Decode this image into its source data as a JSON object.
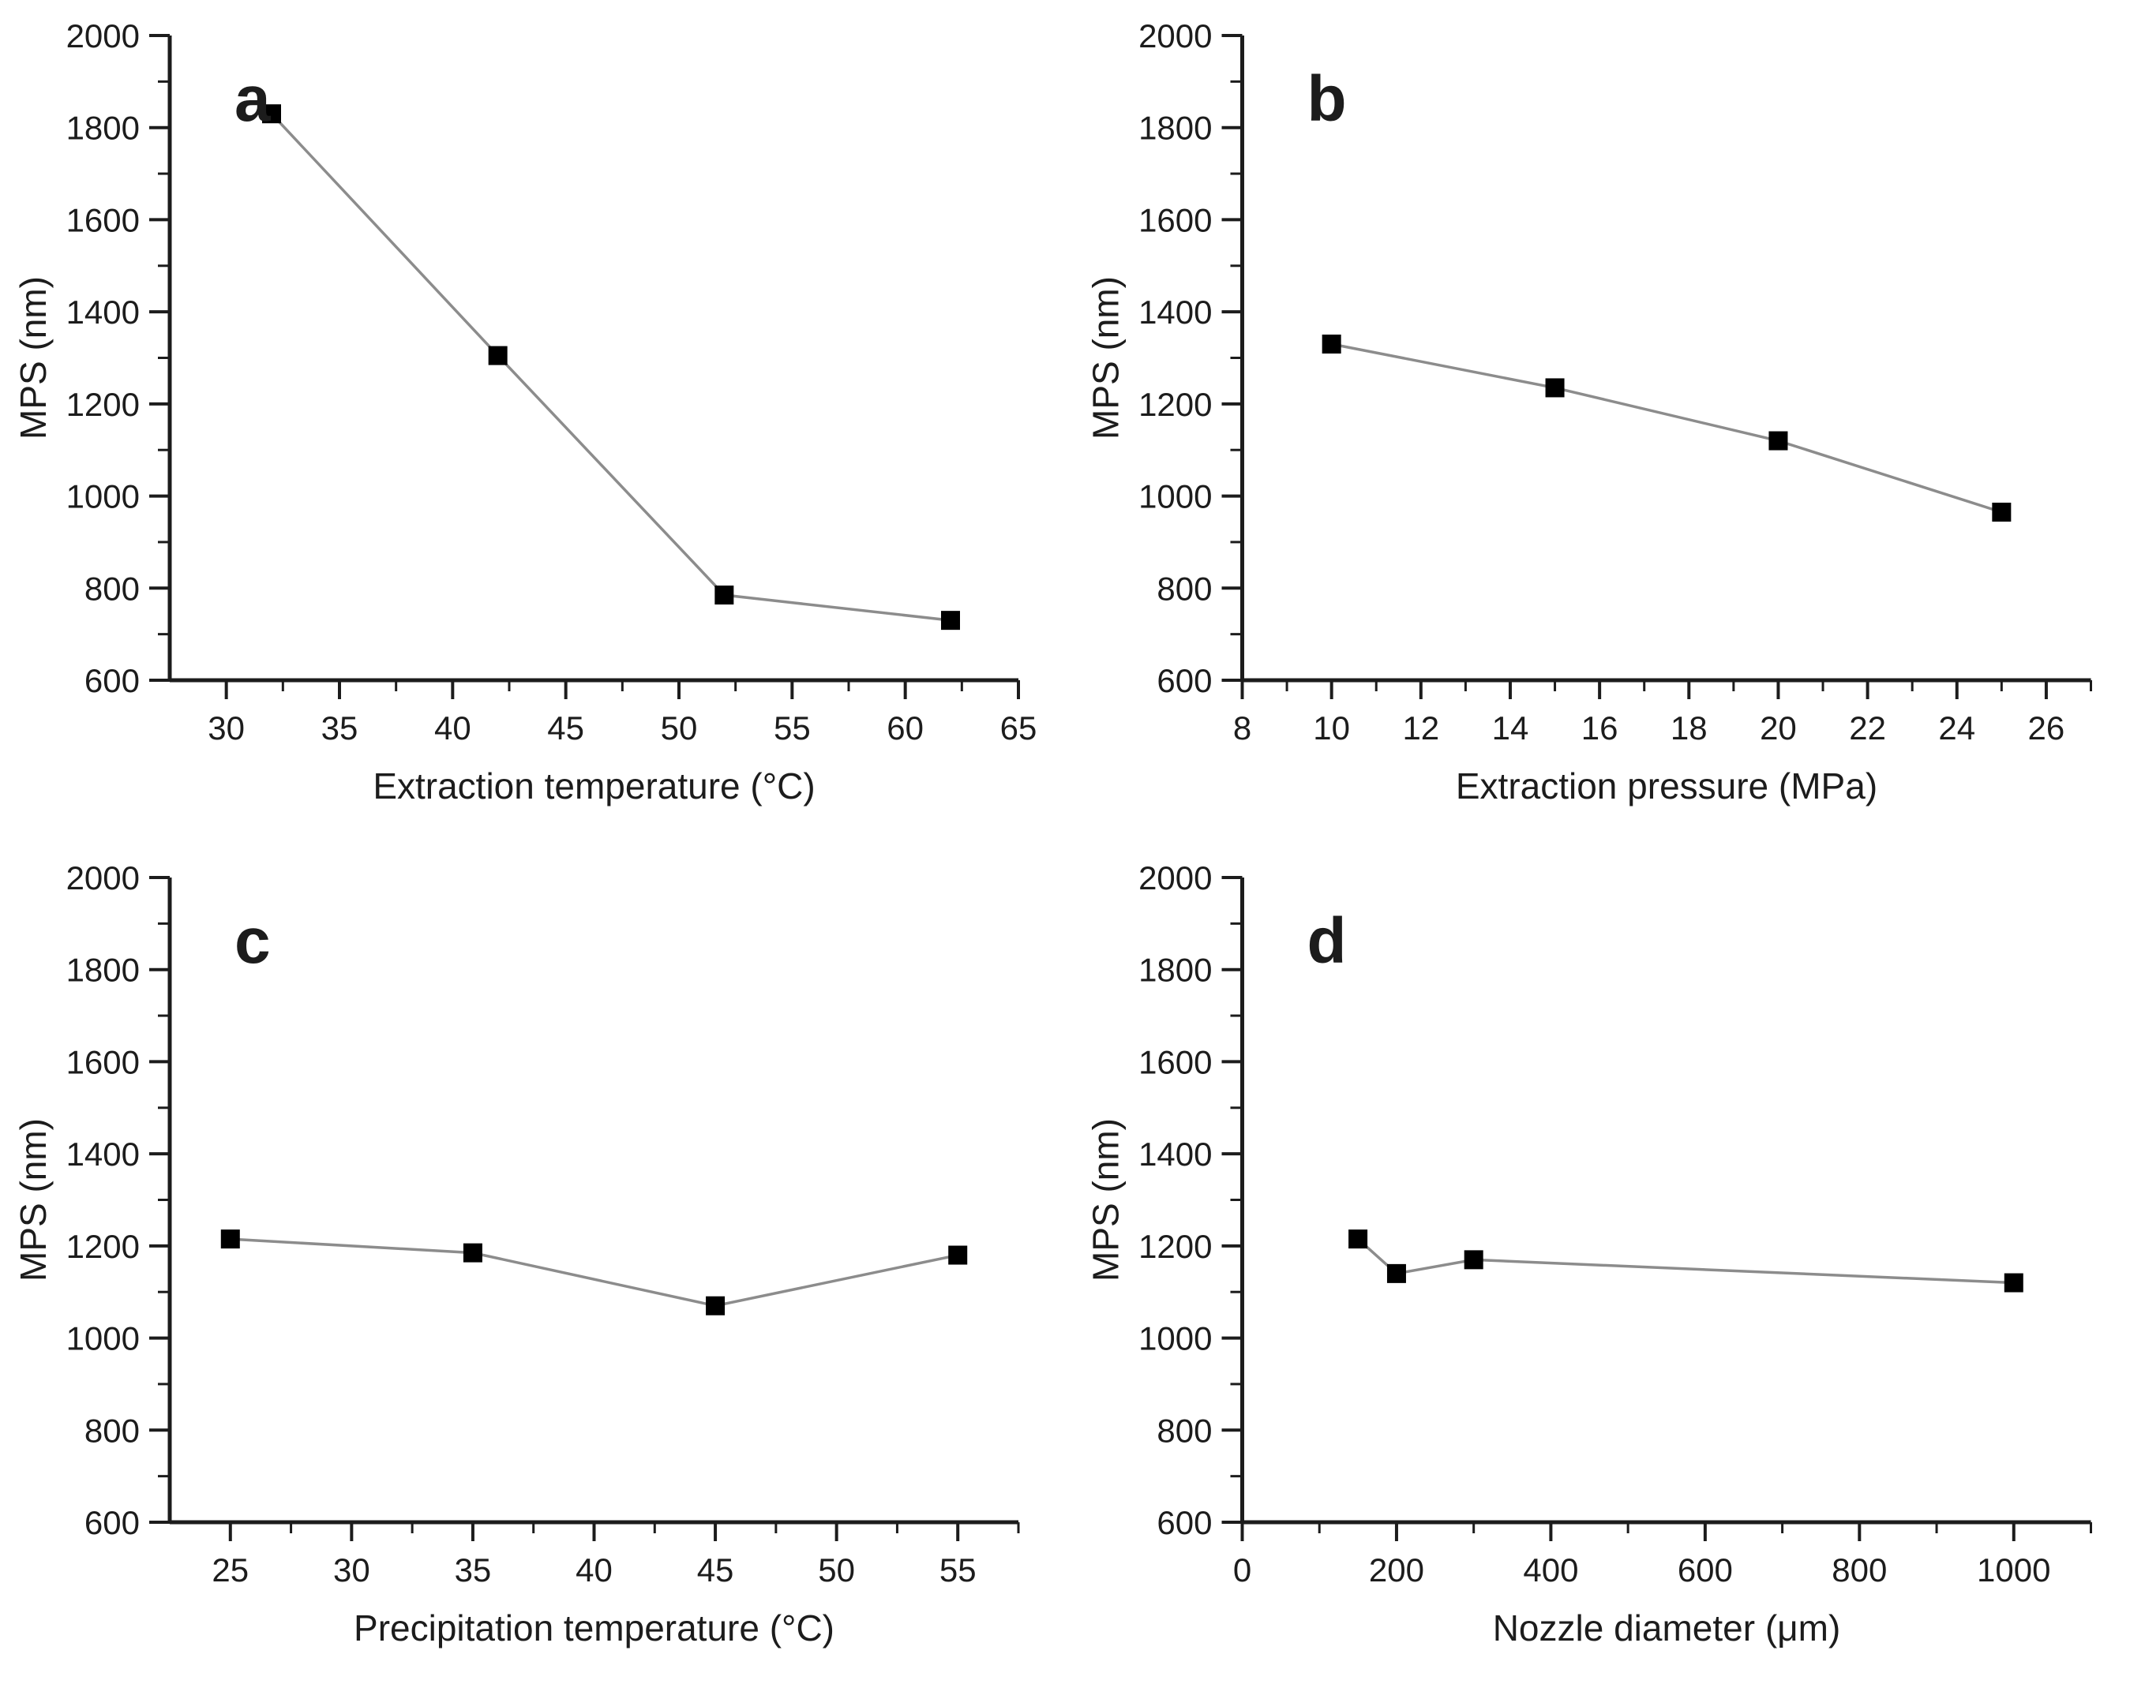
{
  "figure": {
    "background": "#ffffff",
    "axis_color": "#1c1c1c",
    "line_color": "#8c8c8c",
    "marker_color": "#000000",
    "text_color": "#1c1c1c",
    "marker_size": 24
  },
  "chart_data": [
    {
      "type": "line",
      "panel_label": "a",
      "xlabel": "Extraction temperature (°C)",
      "ylabel": "MPS (nm)",
      "x": [
        32,
        42,
        52,
        62
      ],
      "y": [
        1830,
        1305,
        785,
        730
      ],
      "xlim": [
        27.5,
        65
      ],
      "ylim": [
        600,
        2000
      ],
      "xticks": [
        30,
        35,
        40,
        45,
        50,
        55,
        60,
        65
      ],
      "x_minor_step": 2.5,
      "yticks": [
        600,
        800,
        1000,
        1200,
        1400,
        1600,
        1800,
        2000
      ],
      "y_minor_step": 100,
      "grid": false,
      "legend": "none"
    },
    {
      "type": "line",
      "panel_label": "b",
      "xlabel": "Extraction pressure (MPa)",
      "ylabel": "MPS (nm)",
      "x": [
        10,
        15,
        20,
        25
      ],
      "y": [
        1330,
        1235,
        1120,
        965
      ],
      "xlim": [
        8,
        27
      ],
      "ylim": [
        600,
        2000
      ],
      "xticks": [
        8,
        10,
        12,
        14,
        16,
        18,
        20,
        22,
        24,
        26
      ],
      "x_minor_step": 1,
      "yticks": [
        600,
        800,
        1000,
        1200,
        1400,
        1600,
        1800,
        2000
      ],
      "y_minor_step": 100,
      "grid": false,
      "legend": "none"
    },
    {
      "type": "line",
      "panel_label": "c",
      "xlabel": "Precipitation temperature (°C)",
      "ylabel": "MPS (nm)",
      "x": [
        25,
        35,
        45,
        55
      ],
      "y": [
        1215,
        1185,
        1070,
        1180
      ],
      "xlim": [
        22.5,
        57.5
      ],
      "ylim": [
        600,
        2000
      ],
      "xticks": [
        25,
        30,
        35,
        40,
        45,
        50,
        55
      ],
      "x_minor_step": 2.5,
      "yticks": [
        600,
        800,
        1000,
        1200,
        1400,
        1600,
        1800,
        2000
      ],
      "y_minor_step": 100,
      "grid": false,
      "legend": "none"
    },
    {
      "type": "line",
      "panel_label": "d",
      "xlabel": "Nozzle diameter (μm)",
      "ylabel": "MPS (nm)",
      "x": [
        150,
        200,
        300,
        1000
      ],
      "y": [
        1215,
        1140,
        1170,
        1120
      ],
      "xlim": [
        0,
        1100
      ],
      "ylim": [
        600,
        2000
      ],
      "xticks": [
        0,
        200,
        400,
        600,
        800,
        1000
      ],
      "x_minor_step": 100,
      "yticks": [
        600,
        800,
        1000,
        1200,
        1400,
        1600,
        1800,
        2000
      ],
      "y_minor_step": 100,
      "grid": false,
      "legend": "none"
    }
  ]
}
